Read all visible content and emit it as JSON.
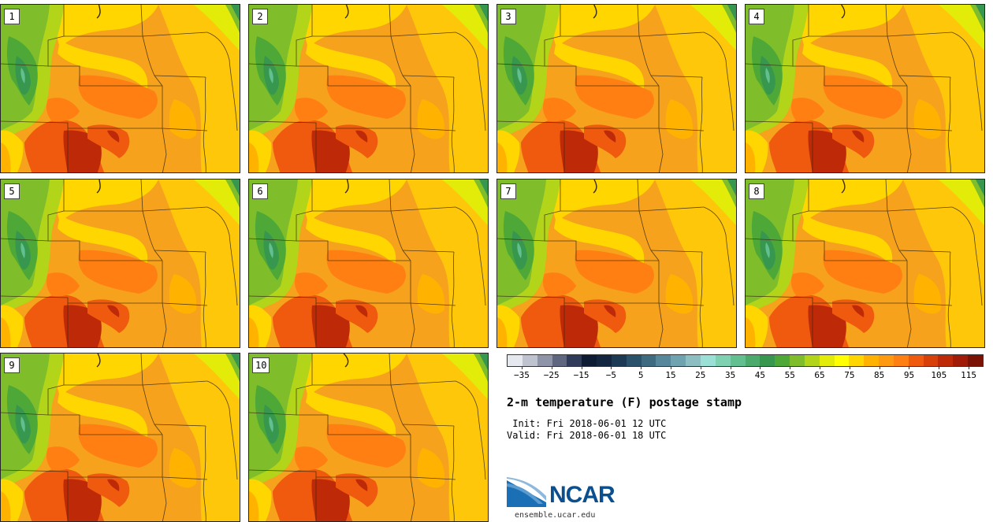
{
  "title": "2-m temperature (F) postage stamp",
  "init_text": " Init: Fri 2018-06-01 12 UTC",
  "valid_text": "Valid: Fri 2018-06-01 18 UTC",
  "members": [
    "1",
    "2",
    "3",
    "4",
    "5",
    "6",
    "7",
    "8",
    "9",
    "10"
  ],
  "colorbar": {
    "colors": [
      "#e6e8ef",
      "#bfc3cf",
      "#8f94a8",
      "#5e6680",
      "#2f3b58",
      "#0e1c33",
      "#14263f",
      "#1d3a55",
      "#2b526b",
      "#3f6b80",
      "#56879a",
      "#6fa3b0",
      "#8dbfc2",
      "#9be0d6",
      "#7fd2b1",
      "#62c090",
      "#4aab6d",
      "#37974e",
      "#4ea837",
      "#7fbe2a",
      "#b2d519",
      "#e2ec08",
      "#ffff00",
      "#ffd600",
      "#ffb300",
      "#ff9a10",
      "#ff7f12",
      "#ef5a0e",
      "#d8400a",
      "#be2a08",
      "#a01b08",
      "#7a1206"
    ],
    "ticks": [
      "−35",
      "−25",
      "−15",
      "−5",
      "5",
      "15",
      "25",
      "35",
      "45",
      "55",
      "65",
      "75",
      "85",
      "95",
      "105",
      "115"
    ],
    "min": -35,
    "max": 125
  },
  "logo": {
    "name": "NCAR",
    "url": "ensemble.ucar.edu"
  }
}
